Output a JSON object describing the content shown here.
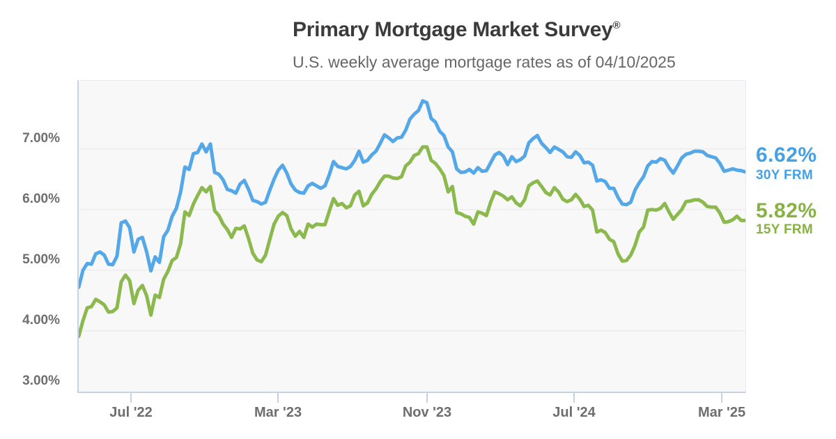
{
  "header": {
    "title": "Primary Mortgage Market Survey",
    "registered_mark": "®",
    "subtitle": "U.S. weekly average mortgage rates as of 04/10/2025"
  },
  "y_axis": {
    "labels": [
      "7.00%",
      "6.00%",
      "5.00%",
      "4.00%",
      "3.00%"
    ]
  },
  "x_axis": {
    "labels": [
      "Jul '22",
      "Mar '23",
      "Nov '23",
      "Jul '24",
      "Mar '25"
    ]
  },
  "legend": {
    "blue": {
      "rate": "6.62%",
      "name": "30Y FRM",
      "color": "#45a1e5"
    },
    "green": {
      "rate": "5.82%",
      "name": "15Y FRM",
      "color": "#87b243"
    }
  },
  "chart_data": {
    "type": "line",
    "title": "Primary Mortgage Market Survey®",
    "subtitle": "U.S. weekly average mortgage rates as of 04/10/2025",
    "frequency": "weekly",
    "x_start": "2022-04-07",
    "x_end": "2025-04-10",
    "x_tick_labels": [
      "Jul '22",
      "Mar '23",
      "Nov '23",
      "Jul '24",
      "Mar '25"
    ],
    "y_tick_labels": [
      "7.00%",
      "6.00%",
      "5.00%",
      "4.00%",
      "3.00%"
    ],
    "ylim": [
      3.0,
      8.12
    ],
    "gridlines": [
      7,
      6,
      5,
      4
    ],
    "grid_color": "#e8e8e8",
    "plot_background": "#f8f8f9",
    "axis_color": "#c4d2e8",
    "legend_position": "right",
    "series": [
      {
        "id": "30y-frm",
        "name": "30Y FRM",
        "latest": "6.62%",
        "color": "#55a8e8",
        "values": [
          4.72,
          5.0,
          5.11,
          5.1,
          5.27,
          5.3,
          5.25,
          5.1,
          5.09,
          5.23,
          5.78,
          5.81,
          5.7,
          5.3,
          5.51,
          5.54,
          5.3,
          4.99,
          5.22,
          5.13,
          5.55,
          5.66,
          5.89,
          6.02,
          6.29,
          6.7,
          6.66,
          6.92,
          6.94,
          7.08,
          6.95,
          7.08,
          6.61,
          6.58,
          6.49,
          6.33,
          6.31,
          6.27,
          6.42,
          6.48,
          6.33,
          6.15,
          6.13,
          6.09,
          6.12,
          6.32,
          6.5,
          6.65,
          6.73,
          6.6,
          6.42,
          6.32,
          6.28,
          6.27,
          6.39,
          6.43,
          6.39,
          6.35,
          6.39,
          6.57,
          6.79,
          6.71,
          6.69,
          6.67,
          6.71,
          6.81,
          6.96,
          6.78,
          6.81,
          6.9,
          6.96,
          7.09,
          7.23,
          7.18,
          7.12,
          7.18,
          7.19,
          7.31,
          7.49,
          7.57,
          7.63,
          7.79,
          7.76,
          7.5,
          7.44,
          7.29,
          7.22,
          7.03,
          6.95,
          6.67,
          6.61,
          6.62,
          6.66,
          6.6,
          6.69,
          6.63,
          6.64,
          6.77,
          6.9,
          6.94,
          6.88,
          6.74,
          6.87,
          6.79,
          6.82,
          6.88,
          7.1,
          7.17,
          7.22,
          7.09,
          7.02,
          6.94,
          7.03,
          6.99,
          6.95,
          6.87,
          6.86,
          6.95,
          6.89,
          6.77,
          6.78,
          6.73,
          6.47,
          6.49,
          6.46,
          6.35,
          6.35,
          6.2,
          6.09,
          6.08,
          6.12,
          6.32,
          6.44,
          6.54,
          6.72,
          6.79,
          6.78,
          6.84,
          6.81,
          6.69,
          6.6,
          6.72,
          6.85,
          6.91,
          6.93,
          6.96,
          6.96,
          6.95,
          6.89,
          6.87,
          6.85,
          6.76,
          6.63,
          6.65,
          6.67,
          6.65,
          6.64,
          6.62
        ]
      },
      {
        "id": "15y-frm",
        "name": "15Y FRM",
        "latest": "5.82%",
        "color": "#8cb94e",
        "values": [
          3.91,
          4.17,
          4.38,
          4.4,
          4.52,
          4.48,
          4.43,
          4.31,
          4.32,
          4.38,
          4.81,
          4.92,
          4.83,
          4.45,
          4.67,
          4.75,
          4.58,
          4.26,
          4.59,
          4.55,
          4.85,
          4.98,
          5.16,
          5.21,
          5.44,
          5.96,
          5.9,
          6.09,
          6.23,
          6.36,
          6.29,
          6.38,
          5.98,
          5.9,
          5.76,
          5.67,
          5.54,
          5.69,
          5.68,
          5.73,
          5.52,
          5.28,
          5.17,
          5.14,
          5.25,
          5.51,
          5.76,
          5.89,
          5.95,
          5.9,
          5.68,
          5.56,
          5.64,
          5.54,
          5.76,
          5.71,
          5.76,
          5.75,
          5.75,
          5.97,
          6.18,
          6.07,
          6.1,
          6.03,
          6.06,
          6.24,
          6.3,
          6.06,
          6.11,
          6.25,
          6.34,
          6.46,
          6.55,
          6.55,
          6.52,
          6.51,
          6.54,
          6.72,
          6.78,
          6.89,
          6.92,
          7.03,
          7.03,
          6.81,
          6.76,
          6.67,
          6.56,
          6.29,
          6.38,
          5.95,
          5.93,
          5.89,
          5.87,
          5.76,
          5.96,
          5.94,
          5.9,
          6.12,
          6.29,
          6.26,
          6.22,
          6.16,
          6.21,
          6.11,
          6.06,
          6.16,
          6.39,
          6.44,
          6.47,
          6.38,
          6.28,
          6.24,
          6.36,
          6.29,
          6.17,
          6.13,
          6.16,
          6.25,
          6.17,
          6.05,
          6.07,
          5.99,
          5.63,
          5.66,
          5.62,
          5.51,
          5.47,
          5.27,
          5.15,
          5.16,
          5.25,
          5.41,
          5.63,
          5.71,
          5.99,
          6.0,
          5.99,
          6.02,
          6.1,
          5.96,
          5.84,
          5.92,
          6.0,
          6.13,
          6.14,
          6.16,
          6.16,
          6.12,
          6.05,
          6.04,
          6.04,
          5.94,
          5.79,
          5.8,
          5.83,
          5.89,
          5.82,
          5.82
        ]
      }
    ]
  }
}
